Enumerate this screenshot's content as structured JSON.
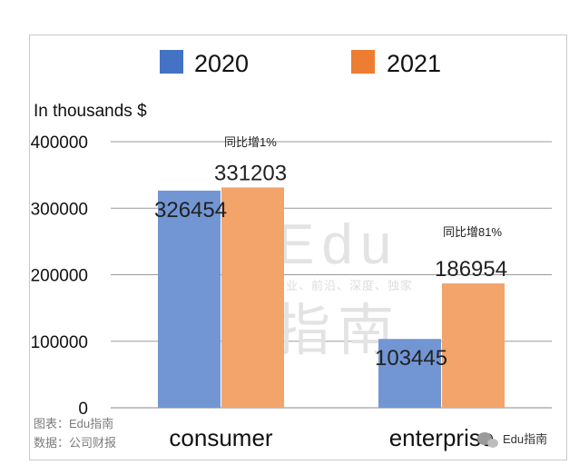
{
  "chart_data": {
    "type": "bar",
    "categories": [
      "consumer",
      "enterprise"
    ],
    "series": [
      {
        "name": "2020",
        "color": "#7296d4",
        "values": [
          326454,
          103445
        ]
      },
      {
        "name": "2021",
        "color": "#f2a46b",
        "values": [
          331203,
          186954
        ]
      }
    ],
    "legend_colors": [
      "#4472c4",
      "#ed7d31"
    ],
    "unit_label": "In thousands $",
    "ylim": [
      0,
      400000
    ],
    "yticks": [
      0,
      100000,
      200000,
      300000,
      400000
    ],
    "grid": true,
    "legend_position": "top",
    "annotations": [
      "同比增1%",
      "同比增81%"
    ]
  },
  "footer": {
    "chart_source": "图表：Edu指南",
    "data_source": "数据：公司财报",
    "brand": "Edu指南"
  },
  "watermark": {
    "big_line1": "Edu",
    "tagline": "教育行业、前沿、深度、独家",
    "big_line2": "指南"
  }
}
